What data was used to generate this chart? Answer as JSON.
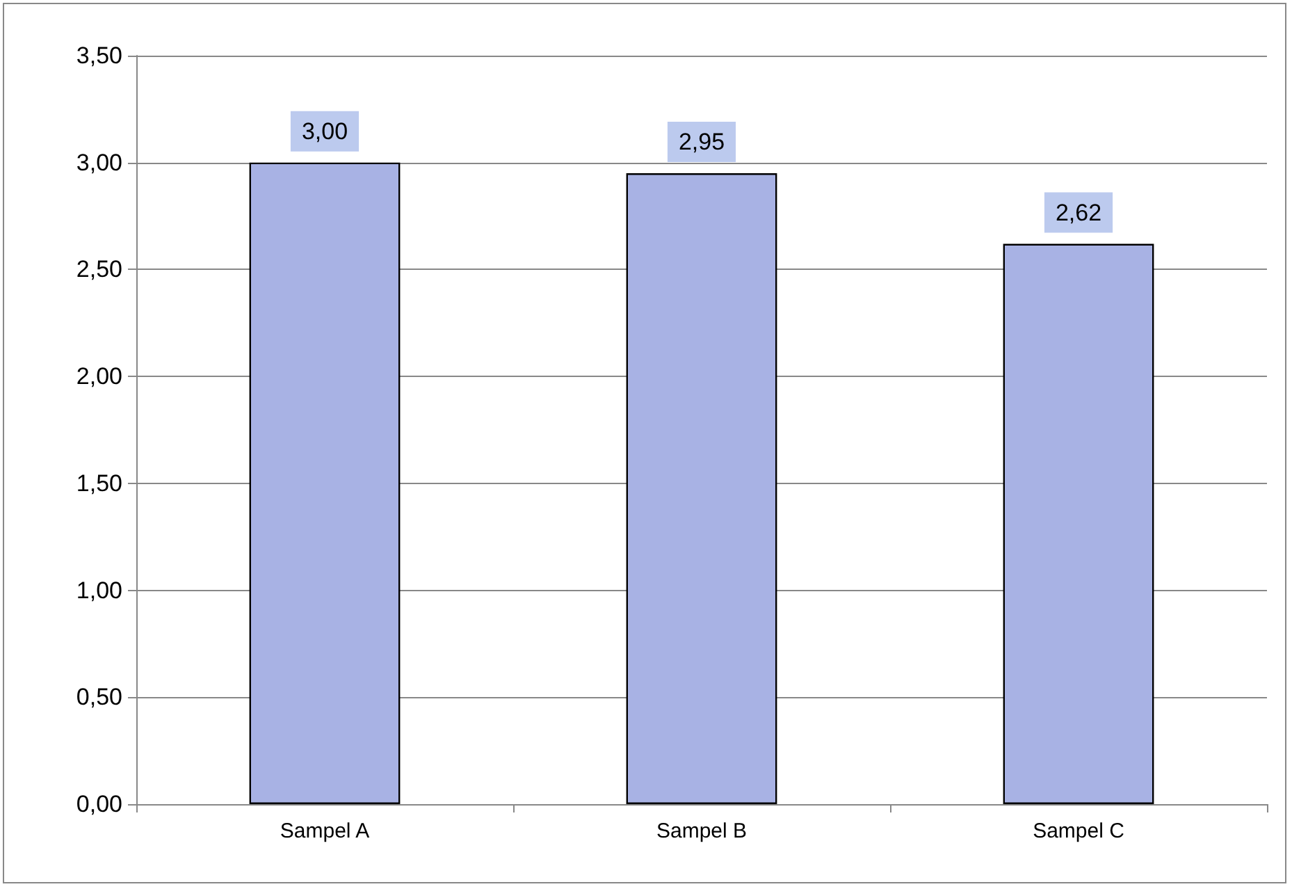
{
  "chart_data": {
    "type": "bar",
    "categories": [
      "Sampel A",
      "Sampel B",
      "Sampel C"
    ],
    "values": [
      3.0,
      2.95,
      2.62
    ],
    "color": "#a8b2e4",
    "value_labels": [
      "3,00",
      "2,95",
      "2,62"
    ],
    "ylim": [
      0,
      3.5
    ],
    "yticks": [
      {
        "value": 0,
        "label": "0,00"
      },
      {
        "value": 0.5,
        "label": "0,50"
      },
      {
        "value": 1,
        "label": "1,00"
      },
      {
        "value": 1.5,
        "label": "1,50"
      },
      {
        "value": 2,
        "label": "2,00"
      },
      {
        "value": 2.5,
        "label": "2,50"
      },
      {
        "value": 3,
        "label": "3,00"
      },
      {
        "value": 3.5,
        "label": "3,50"
      }
    ],
    "grid": "y"
  }
}
